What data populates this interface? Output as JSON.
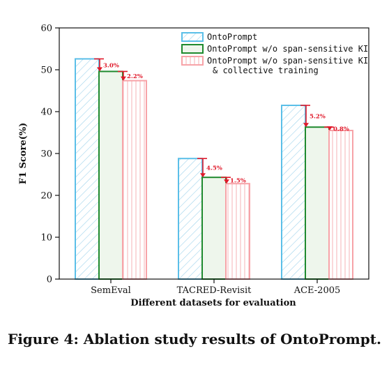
{
  "caption": "Figure 4: Ablation study results of OntoPrompt.",
  "chart_data": {
    "type": "bar",
    "title": "",
    "xlabel": "Different datasets for evaluation",
    "ylabel": "F1 Score(%)",
    "ylim": [
      0,
      60
    ],
    "yticks": [
      0,
      10,
      20,
      30,
      40,
      50,
      60
    ],
    "grid": false,
    "legend_position": "top-right",
    "categories": [
      "SemEval",
      "TACRED-Revisit",
      "ACE-2005"
    ],
    "series": [
      {
        "name": "OntoPrompt",
        "values": [
          52.6,
          28.8,
          41.5
        ],
        "edge_color": "#5bbfe8",
        "fill": "#ffffff",
        "pattern": "diagonal-hatch",
        "hatch_color": "#9fd3ec"
      },
      {
        "name": "OntoPrompt w/o span-sensitive KI",
        "values": [
          49.6,
          24.3,
          36.3
        ],
        "edge_color": "#1f8a2e",
        "fill": "#eef6ec",
        "pattern": "solid"
      },
      {
        "name": "OntoPrompt w/o span-sensitive KI\n& collective training",
        "legend_lines": [
          "OntoPrompt w/o span-sensitive KI",
          "& collective training"
        ],
        "values": [
          47.4,
          22.8,
          35.5
        ],
        "edge_color": "#f7a3a8",
        "fill": "#ffffff",
        "pattern": "vertical-lines",
        "hatch_color": "#f7b8bc"
      }
    ],
    "annotations": [
      {
        "category": "SemEval",
        "from_series": 0,
        "to_series": 1,
        "label": "3.0%"
      },
      {
        "category": "SemEval",
        "from_series": 1,
        "to_series": 2,
        "label": "2.2%"
      },
      {
        "category": "TACRED-Revisit",
        "from_series": 0,
        "to_series": 1,
        "label": "4.5%"
      },
      {
        "category": "TACRED-Revisit",
        "from_series": 1,
        "to_series": 2,
        "label": "1.5%"
      },
      {
        "category": "ACE-2005",
        "from_series": 0,
        "to_series": 1,
        "label": "5.2%"
      },
      {
        "category": "ACE-2005",
        "from_series": 1,
        "to_series": 2,
        "label": "0.8%"
      }
    ],
    "annotation_color": "#e0192a"
  }
}
